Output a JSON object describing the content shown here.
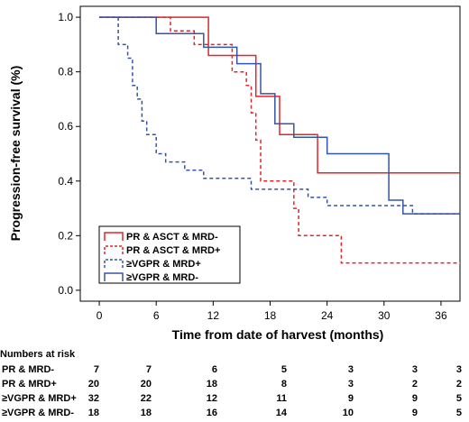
{
  "chart_data": {
    "type": "line",
    "subtype": "kaplan-meier survival",
    "ylabel": "Progression-free survival (%)",
    "xlabel": "Time from date of harvest (months)",
    "xlim": [
      -2,
      38
    ],
    "ylim": [
      -0.04,
      1.04
    ],
    "xticks": [
      0,
      6,
      12,
      18,
      24,
      30,
      36
    ],
    "yticks": [
      0.0,
      0.2,
      0.4,
      0.6,
      0.8,
      1.0
    ],
    "ytick_labels": [
      "0.0",
      "0.2",
      "0.4",
      "0.6",
      "0.8",
      "1.0"
    ],
    "grid": false,
    "legend_position": "lower-left",
    "series": [
      {
        "name": "PR & ASCT & MRD-",
        "color": "#e2252a",
        "dash": "solid",
        "points": [
          [
            0,
            1.0
          ],
          [
            11.5,
            1.0
          ],
          [
            11.5,
            0.86
          ],
          [
            14.5,
            0.86
          ],
          [
            14.5,
            0.86
          ],
          [
            16.5,
            0.86
          ],
          [
            16.5,
            0.71
          ],
          [
            19,
            0.71
          ],
          [
            19,
            0.57
          ],
          [
            23,
            0.57
          ],
          [
            23,
            0.43
          ],
          [
            38,
            0.43
          ]
        ]
      },
      {
        "name": "PR & ASCT & MRD+",
        "color": "#e2252a",
        "dash": "dashed",
        "points": [
          [
            0,
            1.0
          ],
          [
            7.5,
            1.0
          ],
          [
            7.5,
            0.95
          ],
          [
            10,
            0.95
          ],
          [
            10,
            0.9
          ],
          [
            14,
            0.9
          ],
          [
            14,
            0.8
          ],
          [
            15.5,
            0.8
          ],
          [
            15.5,
            0.75
          ],
          [
            16,
            0.75
          ],
          [
            16,
            0.65
          ],
          [
            16.5,
            0.65
          ],
          [
            16.5,
            0.55
          ],
          [
            17,
            0.55
          ],
          [
            17,
            0.4
          ],
          [
            20.5,
            0.4
          ],
          [
            20.5,
            0.3
          ],
          [
            21,
            0.3
          ],
          [
            21,
            0.2
          ],
          [
            25.5,
            0.2
          ],
          [
            25.5,
            0.1
          ],
          [
            38,
            0.1
          ]
        ]
      },
      {
        "name": "≥VGPR & MRD+",
        "color": "#3355a8",
        "dash": "dashed",
        "points": [
          [
            0,
            1.0
          ],
          [
            2,
            1.0
          ],
          [
            2,
            0.9
          ],
          [
            3,
            0.9
          ],
          [
            3,
            0.85
          ],
          [
            3.5,
            0.85
          ],
          [
            3.5,
            0.75
          ],
          [
            4,
            0.75
          ],
          [
            4,
            0.7
          ],
          [
            4.5,
            0.7
          ],
          [
            4.5,
            0.62
          ],
          [
            5,
            0.62
          ],
          [
            5,
            0.57
          ],
          [
            6,
            0.57
          ],
          [
            6,
            0.5
          ],
          [
            7,
            0.5
          ],
          [
            7,
            0.47
          ],
          [
            9,
            0.47
          ],
          [
            9,
            0.44
          ],
          [
            11,
            0.44
          ],
          [
            11,
            0.41
          ],
          [
            16,
            0.41
          ],
          [
            16,
            0.37
          ],
          [
            22,
            0.37
          ],
          [
            22,
            0.34
          ],
          [
            24,
            0.34
          ],
          [
            24,
            0.31
          ],
          [
            33,
            0.31
          ],
          [
            33,
            0.28
          ],
          [
            38,
            0.28
          ]
        ]
      },
      {
        "name": "≥VGPR & MRD-",
        "color": "#3355a8",
        "dash": "solid",
        "points": [
          [
            0,
            1.0
          ],
          [
            6,
            1.0
          ],
          [
            6,
            0.94
          ],
          [
            11,
            0.94
          ],
          [
            11,
            0.89
          ],
          [
            14.5,
            0.89
          ],
          [
            14.5,
            0.83
          ],
          [
            17,
            0.83
          ],
          [
            17,
            0.72
          ],
          [
            18.5,
            0.72
          ],
          [
            18.5,
            0.61
          ],
          [
            20.5,
            0.61
          ],
          [
            20.5,
            0.56
          ],
          [
            24,
            0.56
          ],
          [
            24,
            0.5
          ],
          [
            30.5,
            0.5
          ],
          [
            30.5,
            0.33
          ],
          [
            32,
            0.33
          ],
          [
            32,
            0.28
          ],
          [
            38,
            0.28
          ]
        ]
      }
    ]
  },
  "risk_table": {
    "title": "Numbers at risk",
    "rows": [
      {
        "label": "PR & MRD-",
        "values": [
          "7",
          "7",
          "6",
          "5",
          "3",
          "3",
          "3"
        ]
      },
      {
        "label": "PR & MRD+",
        "values": [
          "20",
          "20",
          "18",
          "8",
          "3",
          "2",
          "2"
        ]
      },
      {
        "label": "≥VGPR & MRD+",
        "values": [
          "32",
          "22",
          "12",
          "11",
          "9",
          "9",
          "5"
        ]
      },
      {
        "label": "≥VGPR & MRD-",
        "values": [
          "18",
          "18",
          "16",
          "14",
          "10",
          "9",
          "5"
        ]
      }
    ]
  }
}
